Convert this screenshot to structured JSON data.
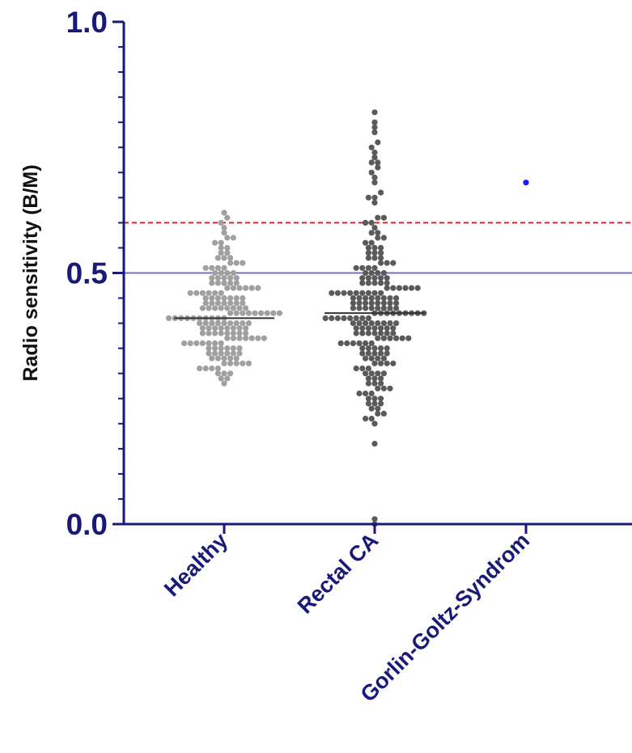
{
  "colors": {
    "axis": "#191978",
    "healthy": "#a0a0a0",
    "rectal": "#5a5a5a",
    "gorlin": "#1a1aff",
    "median_line": "#333333",
    "threshold_red": "#e02020",
    "threshold_blue": "#7070c0",
    "y_title": "#111111"
  },
  "chart_data": {
    "type": "scatter",
    "subtype": "column-scatter (dot plot)",
    "ylabel": "Radio sensitivity (B/M)",
    "xlabel": "",
    "ylim": [
      0.0,
      1.0
    ],
    "ytick_labels": [
      "0.0",
      "0.5",
      "1.0"
    ],
    "minor_tick_step": 0.05,
    "grid": false,
    "legend": "none",
    "categories": [
      "Healthy",
      "Rectal CA",
      "Gorlin-Goltz-Syndrom"
    ],
    "reference_lines": [
      {
        "y": 0.6,
        "style": "dashed",
        "color": "red"
      },
      {
        "y": 0.5,
        "style": "solid",
        "color": "blue"
      }
    ],
    "groups": [
      {
        "category": "Healthy",
        "median": 0.41,
        "n_approx": 200,
        "range": [
          0.28,
          0.62
        ],
        "values": [
          0.28,
          0.29,
          0.29,
          0.3,
          0.3,
          0.3,
          0.31,
          0.31,
          0.31,
          0.31,
          0.32,
          0.32,
          0.32,
          0.32,
          0.32,
          0.33,
          0.33,
          0.33,
          0.33,
          0.33,
          0.34,
          0.34,
          0.34,
          0.34,
          0.34,
          0.34,
          0.35,
          0.35,
          0.35,
          0.35,
          0.35,
          0.35,
          0.36,
          0.36,
          0.36,
          0.36,
          0.36,
          0.36,
          0.36,
          0.37,
          0.37,
          0.37,
          0.37,
          0.37,
          0.37,
          0.37,
          0.38,
          0.38,
          0.38,
          0.38,
          0.38,
          0.38,
          0.38,
          0.38,
          0.39,
          0.39,
          0.39,
          0.39,
          0.39,
          0.39,
          0.39,
          0.39,
          0.4,
          0.4,
          0.4,
          0.4,
          0.4,
          0.4,
          0.4,
          0.4,
          0.4,
          0.41,
          0.41,
          0.41,
          0.41,
          0.41,
          0.41,
          0.41,
          0.41,
          0.41,
          0.41,
          0.42,
          0.42,
          0.42,
          0.42,
          0.42,
          0.42,
          0.42,
          0.42,
          0.42,
          0.43,
          0.43,
          0.43,
          0.43,
          0.43,
          0.43,
          0.43,
          0.43,
          0.44,
          0.44,
          0.44,
          0.44,
          0.44,
          0.44,
          0.44,
          0.45,
          0.45,
          0.45,
          0.45,
          0.45,
          0.45,
          0.45,
          0.46,
          0.46,
          0.46,
          0.46,
          0.46,
          0.46,
          0.47,
          0.47,
          0.47,
          0.47,
          0.47,
          0.47,
          0.48,
          0.48,
          0.48,
          0.48,
          0.48,
          0.49,
          0.49,
          0.49,
          0.49,
          0.49,
          0.5,
          0.5,
          0.5,
          0.5,
          0.51,
          0.51,
          0.51,
          0.51,
          0.52,
          0.52,
          0.52,
          0.53,
          0.53,
          0.53,
          0.54,
          0.54,
          0.55,
          0.55,
          0.56,
          0.56,
          0.57,
          0.57,
          0.58,
          0.59,
          0.6,
          0.61,
          0.62
        ]
      },
      {
        "category": "Rectal CA",
        "median": 0.42,
        "n_approx": 300,
        "range": [
          0.0,
          0.82
        ],
        "values": [
          0.0,
          0.01,
          0.16,
          0.2,
          0.21,
          0.21,
          0.22,
          0.22,
          0.23,
          0.23,
          0.24,
          0.24,
          0.24,
          0.25,
          0.25,
          0.25,
          0.26,
          0.26,
          0.26,
          0.27,
          0.27,
          0.27,
          0.28,
          0.28,
          0.28,
          0.29,
          0.29,
          0.29,
          0.3,
          0.3,
          0.3,
          0.3,
          0.31,
          0.31,
          0.31,
          0.32,
          0.32,
          0.32,
          0.32,
          0.33,
          0.33,
          0.33,
          0.33,
          0.34,
          0.34,
          0.34,
          0.34,
          0.34,
          0.35,
          0.35,
          0.35,
          0.35,
          0.35,
          0.36,
          0.36,
          0.36,
          0.36,
          0.36,
          0.36,
          0.37,
          0.37,
          0.37,
          0.37,
          0.37,
          0.37,
          0.38,
          0.38,
          0.38,
          0.38,
          0.38,
          0.38,
          0.38,
          0.39,
          0.39,
          0.39,
          0.39,
          0.39,
          0.39,
          0.39,
          0.4,
          0.4,
          0.4,
          0.4,
          0.4,
          0.4,
          0.4,
          0.4,
          0.41,
          0.41,
          0.41,
          0.41,
          0.41,
          0.41,
          0.41,
          0.41,
          0.42,
          0.42,
          0.42,
          0.42,
          0.42,
          0.42,
          0.42,
          0.42,
          0.42,
          0.43,
          0.43,
          0.43,
          0.43,
          0.43,
          0.43,
          0.43,
          0.43,
          0.44,
          0.44,
          0.44,
          0.44,
          0.44,
          0.44,
          0.44,
          0.44,
          0.45,
          0.45,
          0.45,
          0.45,
          0.45,
          0.45,
          0.45,
          0.45,
          0.46,
          0.46,
          0.46,
          0.46,
          0.46,
          0.46,
          0.46,
          0.46,
          0.46,
          0.47,
          0.47,
          0.47,
          0.47,
          0.47,
          0.47,
          0.48,
          0.48,
          0.48,
          0.48,
          0.48,
          0.49,
          0.49,
          0.49,
          0.49,
          0.49,
          0.5,
          0.5,
          0.5,
          0.5,
          0.51,
          0.51,
          0.51,
          0.51,
          0.52,
          0.52,
          0.52,
          0.53,
          0.53,
          0.53,
          0.54,
          0.54,
          0.54,
          0.55,
          0.55,
          0.55,
          0.56,
          0.56,
          0.57,
          0.57,
          0.58,
          0.58,
          0.59,
          0.6,
          0.6,
          0.61,
          0.61,
          0.64,
          0.65,
          0.65,
          0.66,
          0.68,
          0.69,
          0.7,
          0.71,
          0.72,
          0.72,
          0.73,
          0.74,
          0.75,
          0.76,
          0.78,
          0.79,
          0.8,
          0.82
        ]
      },
      {
        "category": "Gorlin-Goltz-Syndrom",
        "median": null,
        "n_approx": 1,
        "values": [
          0.68
        ]
      }
    ]
  }
}
